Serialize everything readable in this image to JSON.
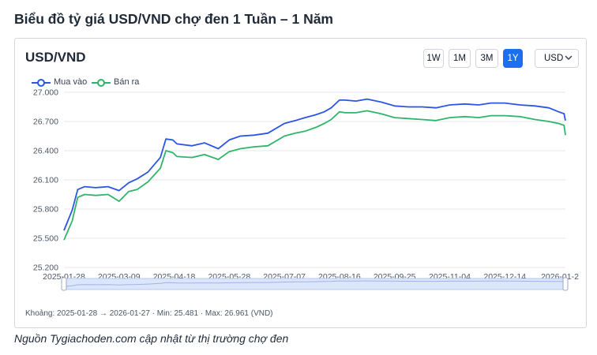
{
  "page_title": "Biểu đồ tỷ giá USD/VND chợ đen 1 Tuần – 1 Năm",
  "card": {
    "title": "USD/VND",
    "range_buttons": [
      "1W",
      "1M",
      "3M",
      "1Y"
    ],
    "active_range": "1Y",
    "currency": {
      "selected": "USD"
    },
    "summary": "Khoảng: 2025-01-28 → 2026-01-27 · Min: 25.481 · Max: 26.961 (VND)"
  },
  "source_note": "Nguồn Tygiachoden.com cập nhật từ thị trường chợ đen",
  "colors": {
    "accent": "#1d6ff2",
    "buy": "#2b55e5",
    "sell": "#2fb56a",
    "grid": "#e5e7eb",
    "slider": "#dce6fb"
  },
  "icons": {
    "currency_dropdown": "chevron-down-icon"
  },
  "chart_data": {
    "type": "line",
    "title": "",
    "xlabel": "",
    "ylabel": "",
    "legend_position": "top-left",
    "grid": true,
    "ylim": [
      25200,
      27000
    ],
    "yticks": [
      25200,
      25500,
      25800,
      26100,
      26400,
      26700,
      27000
    ],
    "ytick_labels": [
      "25.200",
      "25.500",
      "25.800",
      "26.100",
      "26.400",
      "26.700",
      "27.000"
    ],
    "xtick_labels": [
      "2025-01-28",
      "2025-03-09",
      "2025-04-18",
      "2025-05-28",
      "2025-07-07",
      "2025-08-16",
      "2025-09-25",
      "2025-11-04",
      "2025-12-14",
      "2026-01-2"
    ],
    "x": [
      "2025-01-28",
      "2025-02-03",
      "2025-02-07",
      "2025-02-12",
      "2025-02-20",
      "2025-03-01",
      "2025-03-09",
      "2025-03-16",
      "2025-03-22",
      "2025-03-30",
      "2025-04-08",
      "2025-04-12",
      "2025-04-17",
      "2025-04-20",
      "2025-05-01",
      "2025-05-10",
      "2025-05-20",
      "2025-05-28",
      "2025-06-05",
      "2025-06-15",
      "2025-06-25",
      "2025-07-07",
      "2025-07-15",
      "2025-07-22",
      "2025-07-30",
      "2025-08-05",
      "2025-08-10",
      "2025-08-16",
      "2025-08-20",
      "2025-08-28",
      "2025-09-05",
      "2025-09-15",
      "2025-09-25",
      "2025-10-05",
      "2025-10-15",
      "2025-10-25",
      "2025-11-04",
      "2025-11-15",
      "2025-11-25",
      "2025-12-04",
      "2025-12-14",
      "2025-12-25",
      "2026-01-05",
      "2026-01-15",
      "2026-01-22",
      "2026-01-26",
      "2026-01-27"
    ],
    "series": [
      {
        "name": "Mua vào",
        "color": "#2b55e5",
        "values": [
          25580,
          25790,
          26000,
          26030,
          26020,
          26030,
          25990,
          26070,
          26110,
          26180,
          26330,
          26520,
          26510,
          26470,
          26450,
          26480,
          26420,
          26510,
          26550,
          26560,
          26580,
          26680,
          26710,
          26740,
          26770,
          26800,
          26840,
          26920,
          26920,
          26910,
          26930,
          26900,
          26860,
          26850,
          26850,
          26840,
          26870,
          26880,
          26870,
          26890,
          26890,
          26870,
          26860,
          26840,
          26800,
          26780,
          26710
        ]
      },
      {
        "name": "Bán ra",
        "color": "#2fb56a",
        "values": [
          25481,
          25680,
          25920,
          25950,
          25940,
          25950,
          25880,
          25980,
          26000,
          26080,
          26220,
          26400,
          26380,
          26340,
          26330,
          26360,
          26310,
          26390,
          26420,
          26440,
          26450,
          26550,
          26580,
          26600,
          26640,
          26680,
          26720,
          26800,
          26790,
          26790,
          26810,
          26780,
          26740,
          26730,
          26720,
          26710,
          26740,
          26750,
          26740,
          26760,
          26760,
          26750,
          26720,
          26700,
          26680,
          26660,
          26560
        ]
      }
    ]
  }
}
